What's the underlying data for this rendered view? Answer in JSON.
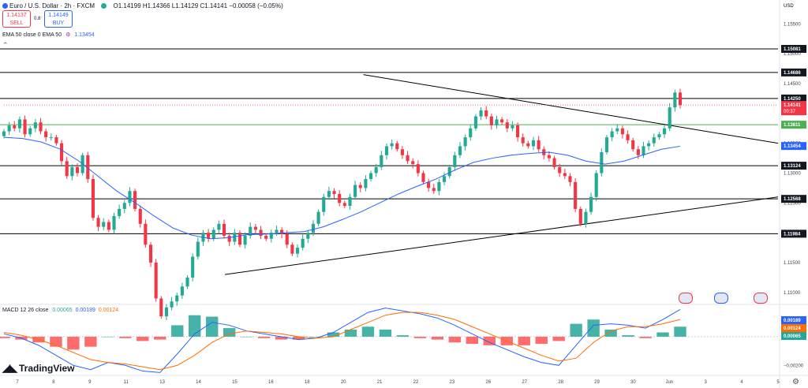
{
  "header": {
    "title": "Euro / U.S. Dollar · 2h · FXCM",
    "ohlc": "O1.14199 H1.14366 L1.14129 C1.14141 −0.00058 (−0.05%)",
    "ema_label": "EMA 50 close 0 EMA 50",
    "ema_value": "1.13454"
  },
  "trade": {
    "sell_price": "1.14137",
    "sell_label": "SELL",
    "spread": "0.8",
    "buy_price": "1.14149",
    "buy_label": "BUY"
  },
  "macd": {
    "label": "MACD 12 26 close",
    "v1": "0.00065",
    "v2": "0.00189",
    "v3": "0.00124"
  },
  "brand": "TradingView",
  "colors": {
    "up": "#22ab94",
    "down": "#f23645",
    "ema": "#2962ff",
    "signal": "#ff6d00",
    "hist_up": "#26a69a",
    "hist_down": "#ff5252",
    "level_green": "#4caf50"
  },
  "chart_data": {
    "type": "candlestick",
    "currency": "USD",
    "price_ticks": [
      "1.15500",
      "1.15000",
      "1.14500",
      "1.14000",
      "1.13500",
      "1.13000",
      "1.12500",
      "1.12000",
      "1.11500",
      "1.11000"
    ],
    "price_range": [
      1.108,
      1.159
    ],
    "levels": [
      {
        "value": 1.15081,
        "label": "1.15081",
        "style": "black"
      },
      {
        "value": 1.14686,
        "label": "1.14686",
        "style": "black"
      },
      {
        "value": 1.1425,
        "label": "1.14250",
        "style": "black"
      },
      {
        "value": 1.13811,
        "label": "1.13811",
        "style": "green"
      },
      {
        "value": 1.13124,
        "label": "1.13124",
        "style": "black"
      },
      {
        "value": 1.12568,
        "label": "1.12568",
        "style": "black"
      },
      {
        "value": 1.11984,
        "label": "1.11984",
        "style": "black"
      }
    ],
    "last_price": {
      "value": 1.14141,
      "label": "1.14141",
      "timer": "00:37"
    },
    "ema_tag": {
      "value": 1.13454,
      "label": "1.13454"
    },
    "trendlines": [
      {
        "from": [
          0.467,
          1.1465
        ],
        "to": [
          1.0,
          1.135
        ]
      },
      {
        "from": [
          0.289,
          1.113
        ],
        "to": [
          1.0,
          1.126
        ]
      }
    ],
    "x_labels": [
      "7",
      "8",
      "9",
      "11",
      "13",
      "14",
      "15",
      "16",
      "18",
      "20",
      "21",
      "22",
      "23",
      "26",
      "27",
      "28",
      "29",
      "30",
      "Jun",
      "3",
      "4",
      "5"
    ],
    "macd_ticks": [
      "0.00000",
      "−0.00200"
    ],
    "macd_tags": [
      {
        "value": 0.00189,
        "label": "0.00189",
        "color": "#2962ff"
      },
      {
        "value": 0.00124,
        "label": "0.00124",
        "color": "#ff6d00"
      },
      {
        "value": 0.00065,
        "label": "0.00065",
        "color": "#26a69a"
      }
    ],
    "close_series": [
      1.137,
      1.138,
      1.1375,
      1.139,
      1.1365,
      1.1375,
      1.1385,
      1.137,
      1.136,
      1.136,
      1.135,
      1.132,
      1.1295,
      1.131,
      1.13,
      1.133,
      1.129,
      1.1225,
      1.121,
      1.1218,
      1.1205,
      1.1228,
      1.124,
      1.125,
      1.127,
      1.124,
      1.1215,
      1.118,
      1.115,
      1.109,
      1.106,
      1.1075,
      1.1085,
      1.1095,
      1.111,
      1.1125,
      1.116,
      1.1185,
      1.12,
      1.119,
      1.1205,
      1.1215,
      1.1195,
      1.1185,
      1.12,
      1.118,
      1.1195,
      1.121,
      1.1205,
      1.1195,
      1.119,
      1.12,
      1.1205,
      1.1198,
      1.118,
      1.1165,
      1.1175,
      1.119,
      1.12,
      1.1215,
      1.1235,
      1.126,
      1.127,
      1.1265,
      1.125,
      1.1245,
      1.126,
      1.128,
      1.1275,
      1.129,
      1.13,
      1.131,
      1.133,
      1.1345,
      1.135,
      1.134,
      1.133,
      1.132,
      1.1315,
      1.13,
      1.1285,
      1.1275,
      1.127,
      1.1285,
      1.1295,
      1.131,
      1.133,
      1.1345,
      1.136,
      1.1375,
      1.1395,
      1.1405,
      1.1395,
      1.138,
      1.139,
      1.1385,
      1.1375,
      1.138,
      1.136,
      1.135,
      1.1345,
      1.1355,
      1.134,
      1.133,
      1.1325,
      1.131,
      1.13,
      1.1295,
      1.1285,
      1.124,
      1.1215,
      1.1235,
      1.126,
      1.13,
      1.1335,
      1.136,
      1.137,
      1.1375,
      1.1365,
      1.1355,
      1.134,
      1.133,
      1.1345,
      1.135,
      1.136,
      1.1365,
      1.1375,
      1.141,
      1.1435,
      1.1414
    ],
    "ema_series": [
      1.136,
      1.1358,
      1.1352,
      1.134,
      1.132,
      1.1295,
      1.127,
      1.125,
      1.1228,
      1.1208,
      1.1196,
      1.119,
      1.1192,
      1.1197,
      1.1198,
      1.12,
      1.1202,
      1.121,
      1.1222,
      1.1235,
      1.125,
      1.1265,
      1.1278,
      1.129,
      1.1305,
      1.1318,
      1.1325,
      1.133,
      1.1333,
      1.1335,
      1.133,
      1.132,
      1.1315,
      1.132,
      1.133,
      1.134,
      1.1345
    ],
    "macd_line": [
      0.0002,
      -0.0001,
      -0.0006,
      -0.0013,
      -0.002,
      -0.0023,
      -0.0018,
      -0.002,
      -0.0024,
      -0.0025,
      -0.0012,
      0.0002,
      0.001,
      0.0008,
      0.0004,
      0.0002,
      0.0,
      -0.0002,
      -0.0001,
      0.0003,
      0.001,
      0.0017,
      0.002,
      0.0018,
      0.0016,
      0.0013,
      0.0008,
      0.0002,
      -0.0004,
      -0.0009,
      -0.0014,
      -0.0018,
      -0.002,
      -0.0006,
      0.0008,
      0.0009,
      0.0008,
      0.0006,
      0.0012,
      0.0019
    ],
    "signal_line": [
      0.0003,
      0.0001,
      -0.0002,
      -0.0006,
      -0.0011,
      -0.0016,
      -0.0018,
      -0.0019,
      -0.0021,
      -0.0023,
      -0.002,
      -0.0013,
      -0.0004,
      0.0002,
      0.0004,
      0.0003,
      0.0002,
      0.0,
      -0.0001,
      0.0,
      0.0005,
      0.001,
      0.0015,
      0.0017,
      0.0017,
      0.0015,
      0.0012,
      0.0007,
      0.0002,
      -0.0003,
      -0.0008,
      -0.0013,
      -0.0017,
      -0.0015,
      -0.0004,
      0.0004,
      0.0007,
      0.0007,
      0.0009,
      0.0012
    ]
  }
}
